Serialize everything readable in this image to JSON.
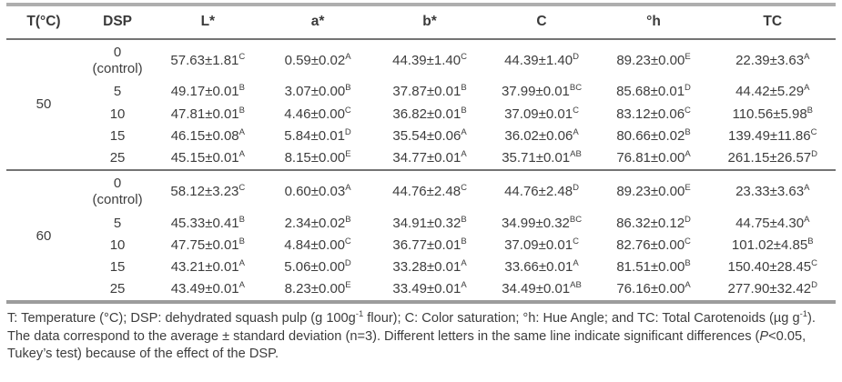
{
  "table": {
    "columns": [
      "T(°C)",
      "DSP",
      "L*",
      "a*",
      "b*",
      "C",
      "°h",
      "TC"
    ],
    "groups": [
      {
        "temperature": "50",
        "rows": [
          {
            "dsp": "0",
            "dsp2": "(control)",
            "values": [
              {
                "v": "57.63±1.81",
                "s": "C"
              },
              {
                "v": "0.59±0.02",
                "s": "A"
              },
              {
                "v": "44.39±1.40",
                "s": "C"
              },
              {
                "v": "44.39±1.40",
                "s": "D"
              },
              {
                "v": "89.23±0.00",
                "s": "E"
              },
              {
                "v": "22.39±3.63",
                "s": "A"
              }
            ]
          },
          {
            "dsp": "5",
            "dsp2": "",
            "values": [
              {
                "v": "49.17±0.01",
                "s": "B"
              },
              {
                "v": "3.07±0.00",
                "s": "B"
              },
              {
                "v": "37.87±0.01",
                "s": "B"
              },
              {
                "v": "37.99±0.01",
                "s": "BC"
              },
              {
                "v": "85.68±0.01",
                "s": "D"
              },
              {
                "v": "44.42±5.29",
                "s": "A"
              }
            ]
          },
          {
            "dsp": "10",
            "dsp2": "",
            "values": [
              {
                "v": "47.81±0.01",
                "s": "B"
              },
              {
                "v": "4.46±0.00",
                "s": "C"
              },
              {
                "v": "36.82±0.01",
                "s": "B"
              },
              {
                "v": "37.09±0.01",
                "s": "C"
              },
              {
                "v": "83.12±0.06",
                "s": "C"
              },
              {
                "v": "110.56±5.98",
                "s": "B"
              }
            ]
          },
          {
            "dsp": "15",
            "dsp2": "",
            "values": [
              {
                "v": "46.15±0.08",
                "s": "A"
              },
              {
                "v": "5.84±0.01",
                "s": "D"
              },
              {
                "v": "35.54±0.06",
                "s": "A"
              },
              {
                "v": "36.02±0.06",
                "s": "A"
              },
              {
                "v": "80.66±0.02",
                "s": "B"
              },
              {
                "v": "139.49±11.86",
                "s": "C"
              }
            ]
          },
          {
            "dsp": "25",
            "dsp2": "",
            "values": [
              {
                "v": "45.15±0.01",
                "s": "A"
              },
              {
                "v": "8.15±0.00",
                "s": "E"
              },
              {
                "v": "34.77±0.01",
                "s": "A"
              },
              {
                "v": "35.71±0.01",
                "s": "AB"
              },
              {
                "v": "76.81±0.00",
                "s": "A"
              },
              {
                "v": "261.15±26.57",
                "s": "D"
              }
            ]
          }
        ]
      },
      {
        "temperature": "60",
        "rows": [
          {
            "dsp": "0",
            "dsp2": "(control)",
            "values": [
              {
                "v": "58.12±3.23",
                "s": "C"
              },
              {
                "v": "0.60±0.03",
                "s": "A"
              },
              {
                "v": "44.76±2.48",
                "s": "C"
              },
              {
                "v": "44.76±2.48",
                "s": "D"
              },
              {
                "v": "89.23±0.00",
                "s": "E"
              },
              {
                "v": "23.33±3.63",
                "s": "A"
              }
            ]
          },
          {
            "dsp": "5",
            "dsp2": "",
            "values": [
              {
                "v": "45.33±0.41",
                "s": "B"
              },
              {
                "v": "2.34±0.02",
                "s": "B"
              },
              {
                "v": "34.91±0.32",
                "s": "B"
              },
              {
                "v": "34.99±0.32",
                "s": "BC"
              },
              {
                "v": "86.32±0.12",
                "s": "D"
              },
              {
                "v": "44.75±4.30",
                "s": "A"
              }
            ]
          },
          {
            "dsp": "10",
            "dsp2": "",
            "values": [
              {
                "v": "47.75±0.01",
                "s": "B"
              },
              {
                "v": "4.84±0.00",
                "s": "C"
              },
              {
                "v": "36.77±0.01",
                "s": "B"
              },
              {
                "v": "37.09±0.01",
                "s": "C"
              },
              {
                "v": "82.76±0.00",
                "s": "C"
              },
              {
                "v": "101.02±4.85",
                "s": "B"
              }
            ]
          },
          {
            "dsp": "15",
            "dsp2": "",
            "values": [
              {
                "v": "43.21±0.01",
                "s": "A"
              },
              {
                "v": "5.06±0.00",
                "s": "D"
              },
              {
                "v": "33.28±0.01",
                "s": "A"
              },
              {
                "v": "33.66±0.01",
                "s": "A"
              },
              {
                "v": "81.51±0.00",
                "s": "B"
              },
              {
                "v": "150.40±28.45",
                "s": "C"
              }
            ]
          },
          {
            "dsp": "25",
            "dsp2": "",
            "values": [
              {
                "v": "43.49±0.01",
                "s": "A"
              },
              {
                "v": "8.23±0.00",
                "s": "E"
              },
              {
                "v": "33.49±0.01",
                "s": "A"
              },
              {
                "v": "34.49±0.01",
                "s": "AB"
              },
              {
                "v": "76.16±0.00",
                "s": "A"
              },
              {
                "v": "277.90±32.42",
                "s": "D"
              }
            ]
          }
        ]
      }
    ]
  },
  "footnote": {
    "segments": [
      {
        "t": "T: Temperature (°C); DSP: dehydrated squash pulp (g 100g",
        "style": "normal"
      },
      {
        "t": "-1",
        "style": "sup"
      },
      {
        "t": " flour); C: Color saturation; °h: Hue Angle; and TC: Total Carotenoids (µg g",
        "style": "normal"
      },
      {
        "t": "-1",
        "style": "sup"
      },
      {
        "t": "). The data correspond to the average ± standard deviation (n=3). Different letters in the same line indicate significant differences (",
        "style": "normal"
      },
      {
        "t": "P",
        "style": "italic"
      },
      {
        "t": "<0.05, Tukey’s test) because of the effect of the DSP.",
        "style": "normal"
      }
    ]
  }
}
